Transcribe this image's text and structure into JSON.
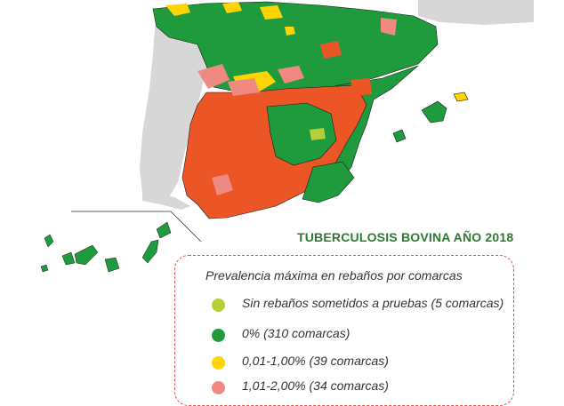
{
  "title": "TUBERCULOSIS BOVINA AÑO 2018",
  "legend": {
    "heading": "Prevalencia máxima en rebaños por comarcas",
    "items": [
      {
        "label": "Sin rebaños sometidos a pruebas  (5 comarcas)",
        "color": "#b5cf3a"
      },
      {
        "label": "0% (310 comarcas)",
        "color": "#1f9a3c"
      },
      {
        "label": "0,01-1,00% (39 comarcas)",
        "color": "#ffd400"
      },
      {
        "label": "1,01-2,00% (34 comarcas)",
        "color": "#ef8a83"
      }
    ]
  },
  "colors": {
    "zero": "#1f9a3c",
    "high": "#ec5526",
    "low": "#ffd400",
    "mid": "#ef8a83",
    "untested": "#b5cf3a",
    "land": "#d7d7d7",
    "border": "#1a1a1a"
  }
}
